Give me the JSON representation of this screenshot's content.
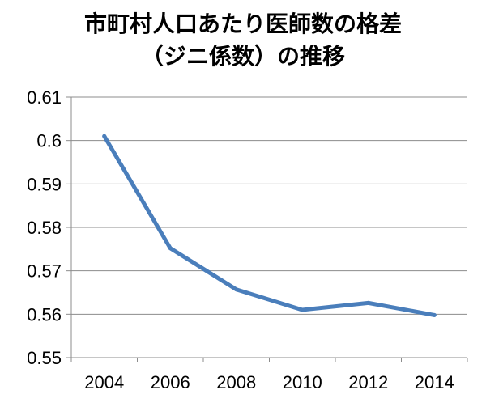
{
  "chart_data": {
    "type": "line",
    "title_lines": [
      "市町村人口あたり医師数の格差",
      "（ジニ係数）の推移"
    ],
    "xlabel": "",
    "ylabel": "",
    "x": [
      2004,
      2006,
      2008,
      2010,
      2012,
      2014
    ],
    "series": [
      {
        "values": [
          0.601,
          0.5752,
          0.5657,
          0.561,
          0.5626,
          0.5598
        ]
      }
    ],
    "ylim": [
      0.55,
      0.61
    ],
    "yticks": [
      "0.55",
      "0.56",
      "0.57",
      "0.58",
      "0.59",
      "0.6",
      "0.61"
    ],
    "xticks": [
      "2004",
      "2006",
      "2008",
      "2010",
      "2012",
      "2014"
    ],
    "grid": true,
    "legend": "none",
    "colors": {
      "line": "#4a7ebb",
      "grid": "#8c8c8c",
      "axis": "#8c8c8c"
    }
  }
}
